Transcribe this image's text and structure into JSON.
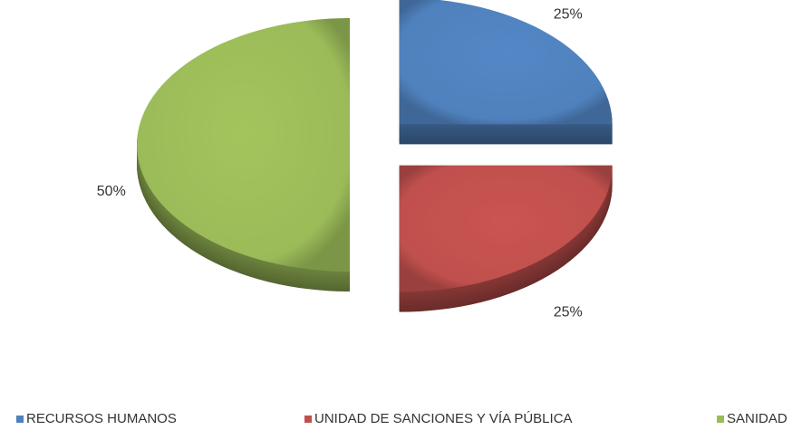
{
  "chart_data": {
    "type": "pie",
    "categories": [
      "RECURSOS HUMANOS",
      "UNIDAD DE SANCIONES Y VÍA PÚBLICA",
      "SANIDAD"
    ],
    "values": [
      25,
      25,
      50
    ],
    "value_labels": [
      "25%",
      "25%",
      "50%"
    ],
    "colors": [
      "#4f81bd",
      "#c0504d",
      "#9bbb59"
    ],
    "legend": "bottom"
  }
}
